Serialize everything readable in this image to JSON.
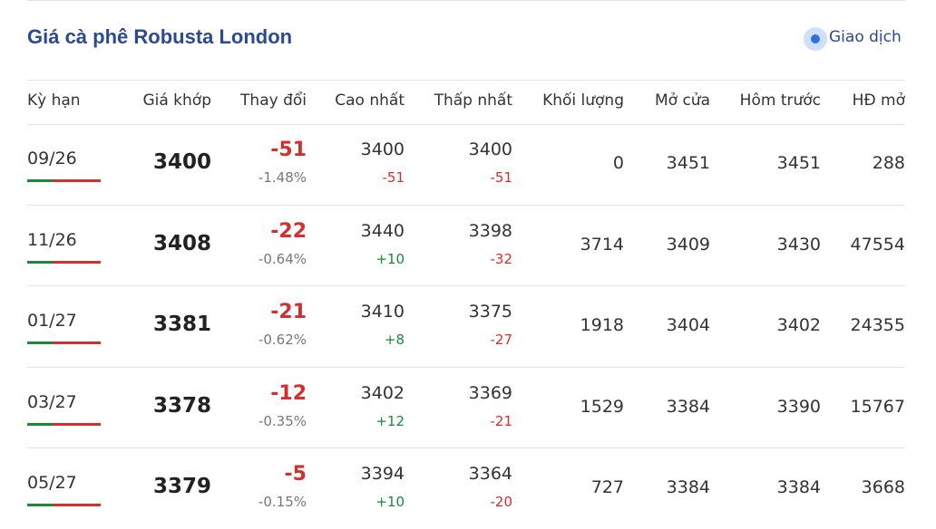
{
  "header": {
    "title": "Giá cà phê Robusta London",
    "status": "Giao dịch"
  },
  "table": {
    "columns": [
      "Kỳ hạn",
      "Giá khớp",
      "Thay đổi",
      "Cao nhất",
      "Thấp nhất",
      "Khối lượng",
      "Mở cửa",
      "Hôm trước",
      "HĐ mở"
    ],
    "rows": [
      [
        "09/26",
        "3400",
        "-51",
        "-1.48%",
        "3400",
        "-51",
        "3400",
        "-51",
        "0",
        "3451",
        "3451",
        "288"
      ],
      [
        "11/26",
        "3408",
        "-22",
        "-0.64%",
        "3440",
        "+10",
        "3398",
        "-32",
        "3714",
        "3409",
        "3430",
        "47554"
      ],
      [
        "01/27",
        "3381",
        "-21",
        "-0.62%",
        "3410",
        "+8",
        "3375",
        "-27",
        "1918",
        "3404",
        "3402",
        "24355"
      ],
      [
        "03/27",
        "3378",
        "-12",
        "-0.35%",
        "3402",
        "+12",
        "3369",
        "-21",
        "1529",
        "3384",
        "3390",
        "15767"
      ],
      [
        "05/27",
        "3379",
        "-5",
        "-0.15%",
        "3394",
        "+10",
        "3364",
        "-20",
        "727",
        "3384",
        "3384",
        "3668"
      ]
    ]
  }
}
